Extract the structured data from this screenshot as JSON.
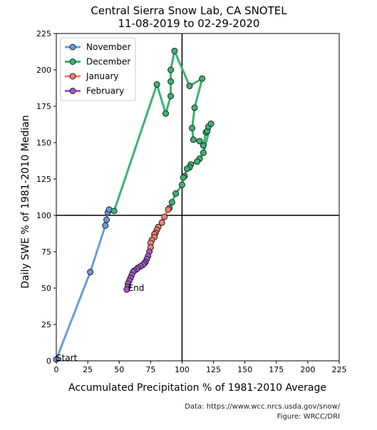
{
  "chart_data": {
    "type": "line",
    "title": "Central Sierra Snow Lab, CA SNOTEL",
    "subtitle": "11-08-2019 to 02-29-2020",
    "xlabel": "Accumulated Precipitation % of 1981-2010 Average",
    "ylabel": "Daily SWE % of 1981-2010 Median",
    "xlim": [
      0,
      225
    ],
    "ylim": [
      0,
      225
    ],
    "xticks": [
      0,
      25,
      50,
      75,
      100,
      125,
      150,
      175,
      200,
      225
    ],
    "yticks": [
      0,
      25,
      50,
      75,
      100,
      125,
      150,
      175,
      200,
      225
    ],
    "reference_lines": {
      "x": 100,
      "y": 100
    },
    "legend_position": "top-left",
    "annotations": [
      {
        "text": "Start",
        "x": 0,
        "y": 1
      },
      {
        "text": "End",
        "x": 57,
        "y": 49
      }
    ],
    "series": [
      {
        "name": "November",
        "color": "#6a9bdf",
        "points": [
          [
            0,
            1
          ],
          [
            27,
            61
          ],
          [
            39,
            93
          ],
          [
            40,
            97
          ],
          [
            41,
            102
          ],
          [
            42,
            104
          ]
        ]
      },
      {
        "name": "December",
        "color": "#3cb371",
        "points": [
          [
            46,
            103
          ],
          [
            80,
            190
          ],
          [
            87,
            170
          ],
          [
            91,
            182
          ],
          [
            91,
            192
          ],
          [
            91,
            200
          ],
          [
            94,
            213
          ],
          [
            106,
            189
          ],
          [
            116,
            194
          ],
          [
            110,
            174
          ],
          [
            108,
            160
          ],
          [
            109,
            152
          ],
          [
            114,
            151
          ],
          [
            117,
            148
          ],
          [
            119,
            157
          ],
          [
            120,
            158
          ],
          [
            121,
            161
          ],
          [
            123,
            163
          ],
          [
            117,
            143
          ],
          [
            114,
            139
          ],
          [
            112,
            137
          ],
          [
            107,
            135
          ],
          [
            106,
            133
          ],
          [
            104,
            132
          ],
          [
            102,
            127
          ],
          [
            101,
            126
          ],
          [
            100,
            121
          ],
          [
            95,
            115
          ],
          [
            92,
            109
          ],
          [
            90,
            105
          ]
        ]
      },
      {
        "name": "January",
        "color": "#f08070",
        "points": [
          [
            89,
            104
          ],
          [
            86,
            99
          ],
          [
            84,
            95
          ],
          [
            81,
            92
          ],
          [
            80,
            90
          ],
          [
            79,
            88
          ],
          [
            78,
            87
          ],
          [
            78,
            85
          ],
          [
            76,
            83
          ],
          [
            75,
            81
          ],
          [
            75,
            78
          ]
        ]
      },
      {
        "name": "February",
        "color": "#a855d0",
        "points": [
          [
            74,
            75
          ],
          [
            73,
            72
          ],
          [
            72,
            70
          ],
          [
            71,
            68
          ],
          [
            70,
            67
          ],
          [
            69,
            66
          ],
          [
            67,
            65
          ],
          [
            65,
            64
          ],
          [
            64,
            63
          ],
          [
            62,
            62
          ],
          [
            61,
            61
          ],
          [
            60,
            59
          ],
          [
            59,
            57
          ],
          [
            58,
            55
          ],
          [
            57,
            53
          ],
          [
            57,
            51
          ],
          [
            56,
            49
          ]
        ]
      }
    ]
  },
  "credits": {
    "line1": "Data: https://www.wcc.nrcs.usda.gov/snow/",
    "line2": "Figure: WRCC/DRI"
  }
}
